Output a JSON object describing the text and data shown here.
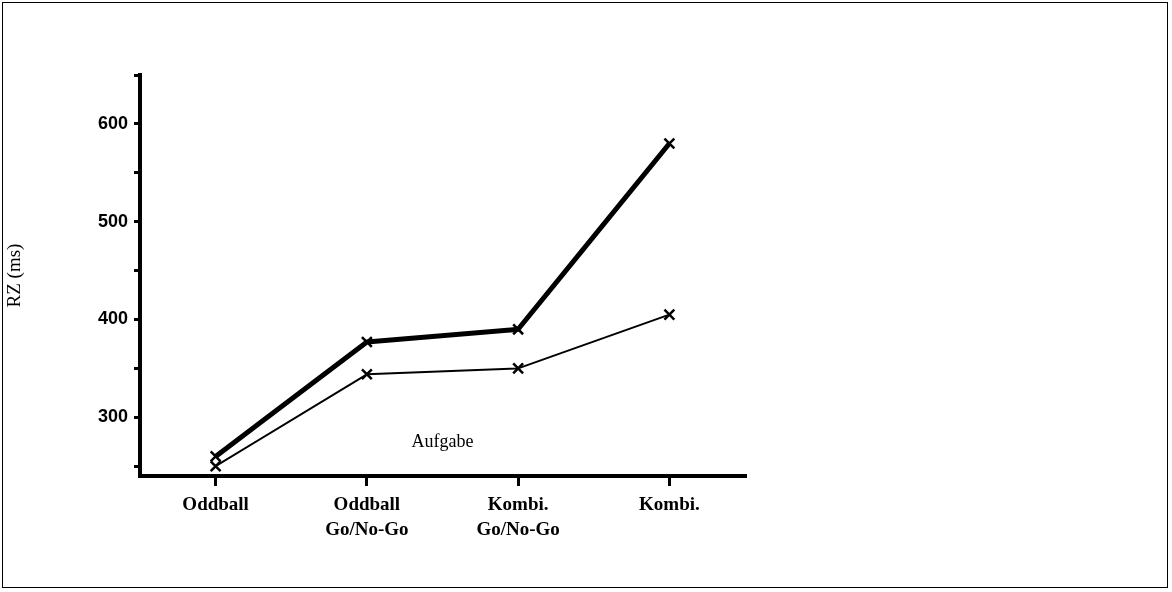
{
  "chart_data": {
    "type": "line",
    "xlabel": "Aufgabe",
    "ylabel": "RZ (ms)",
    "categories": [
      "Oddball",
      "Oddball Go/No-Go",
      "Kombi. Go/No-Go",
      "Kombi."
    ],
    "series": [
      {
        "color": "#000000",
        "values": [
          260,
          377,
          390,
          580
        ]
      },
      {
        "color": "#000000",
        "values": [
          250,
          344,
          350,
          405
        ]
      }
    ],
    "ylim": [
      240,
      650
    ],
    "yticks": [
      {
        "value": 250,
        "label": null
      },
      300,
      {
        "value": 350,
        "label": null
      },
      400,
      {
        "value": 450,
        "label": null
      },
      500,
      {
        "value": 550,
        "label": null
      },
      600,
      {
        "value": 650,
        "label": null
      }
    ],
    "marker": "cross",
    "line_style": "solid",
    "grid": false,
    "legend": false
  }
}
